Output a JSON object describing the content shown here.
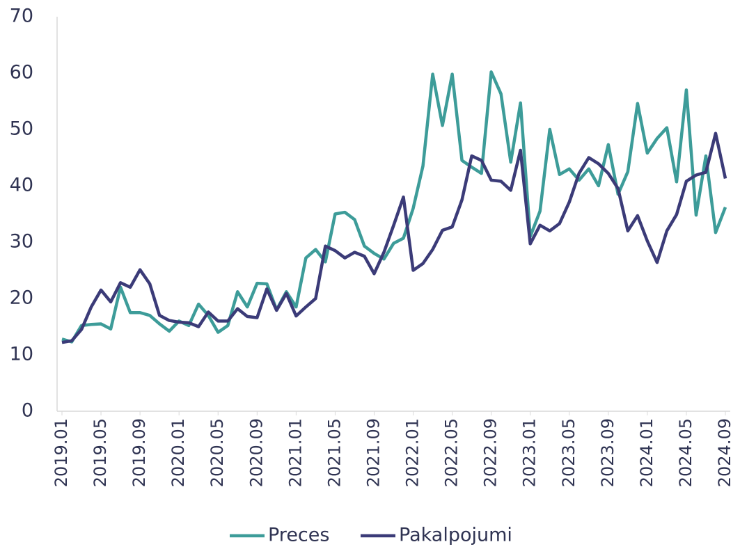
{
  "chart_data": {
    "type": "line",
    "categories": [
      "2019.01",
      null,
      null,
      null,
      "2019.05",
      null,
      null,
      null,
      "2019.09",
      null,
      null,
      null,
      "2020.01",
      null,
      null,
      null,
      "2020.05",
      null,
      null,
      null,
      "2020.09",
      null,
      null,
      null,
      "2021.01",
      null,
      null,
      null,
      "2021.05",
      null,
      null,
      null,
      "2021.09",
      null,
      null,
      null,
      "2022.01",
      null,
      null,
      null,
      "2022.05",
      null,
      null,
      null,
      "2022.09",
      null,
      null,
      null,
      "2023.01",
      null,
      null,
      null,
      "2023.05",
      null,
      null,
      null,
      "2023.09",
      null,
      null,
      null,
      "2024.01",
      null,
      null,
      null,
      "2024.05",
      null,
      null,
      null,
      "2024.09"
    ],
    "series": [
      {
        "name": "Preces",
        "color": "#3d9c99",
        "values": [
          12.8,
          12.3,
          15.2,
          15.4,
          15.5,
          14.6,
          22.0,
          17.5,
          17.5,
          17.0,
          15.5,
          14.2,
          16.0,
          15.2,
          19.0,
          17.0,
          14.0,
          15.2,
          21.2,
          18.5,
          22.7,
          22.6,
          18.0,
          21.2,
          18.5,
          27.2,
          28.7,
          26.5,
          35.0,
          35.3,
          34.0,
          29.3,
          28.0,
          27.0,
          29.8,
          30.7,
          36.0,
          43.5,
          59.8,
          50.7,
          59.8,
          44.5,
          43.3,
          42.2,
          60.2,
          56.3,
          44.2,
          54.7,
          31.0,
          35.5,
          50.0,
          42.0,
          43.0,
          41.0,
          43.0,
          40.0,
          47.3,
          38.5,
          42.5,
          54.6,
          45.8,
          48.4,
          50.3,
          40.7,
          57.0,
          34.8,
          45.3,
          31.7,
          36.2
        ]
      },
      {
        "name": "Pakalpojumi",
        "color": "#3b3b78",
        "values": [
          12.2,
          12.5,
          14.5,
          18.5,
          21.5,
          19.4,
          22.8,
          22.0,
          25.1,
          22.6,
          17.0,
          16.1,
          15.8,
          15.7,
          15.0,
          17.6,
          16.0,
          16.0,
          18.2,
          16.8,
          16.6,
          21.7,
          17.9,
          20.9,
          16.9,
          18.5,
          20.0,
          29.3,
          28.5,
          27.2,
          28.2,
          27.5,
          24.4,
          28.2,
          33.0,
          38.0,
          25.0,
          26.2,
          28.7,
          32.1,
          32.7,
          37.5,
          45.3,
          44.5,
          41.0,
          40.8,
          39.2,
          46.3,
          29.7,
          33.0,
          32.0,
          33.3,
          37.1,
          42.2,
          45.0,
          43.9,
          42.2,
          39.5,
          32.0,
          34.7,
          30.2,
          26.4,
          32.0,
          34.9,
          40.8,
          41.9,
          42.4,
          49.3,
          41.3
        ]
      }
    ],
    "ylim": [
      0,
      70
    ],
    "yticks": [
      0,
      10,
      20,
      30,
      40,
      50,
      60,
      70
    ],
    "grid": false,
    "legend": "bottom"
  }
}
